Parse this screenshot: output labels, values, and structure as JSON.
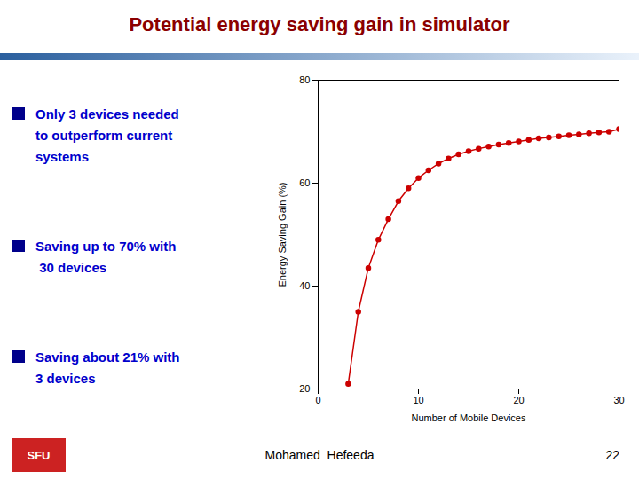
{
  "chart_data": {
    "type": "line",
    "title": "Potential energy saving gain in simulator",
    "xlabel": "Number of Mobile Devices",
    "ylabel": "Energy Saving Gain (%)",
    "x": [
      3,
      4,
      5,
      6,
      7,
      8,
      9,
      10,
      11,
      12,
      13,
      14,
      15,
      16,
      17,
      18,
      19,
      20,
      21,
      22,
      23,
      24,
      25,
      26,
      27,
      28,
      29,
      30
    ],
    "values": [
      21,
      35,
      43.5,
      49,
      53,
      56.5,
      59,
      61,
      62.5,
      63.8,
      64.8,
      65.6,
      66.2,
      66.7,
      67.1,
      67.5,
      67.8,
      68.1,
      68.4,
      68.7,
      68.9,
      69.1,
      69.3,
      69.5,
      69.7,
      69.85,
      70.0,
      70.5
    ],
    "color": "#CC0000",
    "marker": "circle",
    "xlim": [
      0,
      30
    ],
    "ylim": [
      20,
      80
    ],
    "xticks": [
      0,
      10,
      20,
      30
    ],
    "yticks": [
      20,
      40,
      60,
      80
    ],
    "grid": false,
    "annotations": [
      "Only 3 devices needed\nto outperform current\nsystems",
      "Saving up to 70% with\n 30 devices",
      "Saving about 21% with\n3 devices"
    ],
    "footer": [
      "SFU",
      "Mohamed  Hefeeda",
      "22"
    ]
  }
}
